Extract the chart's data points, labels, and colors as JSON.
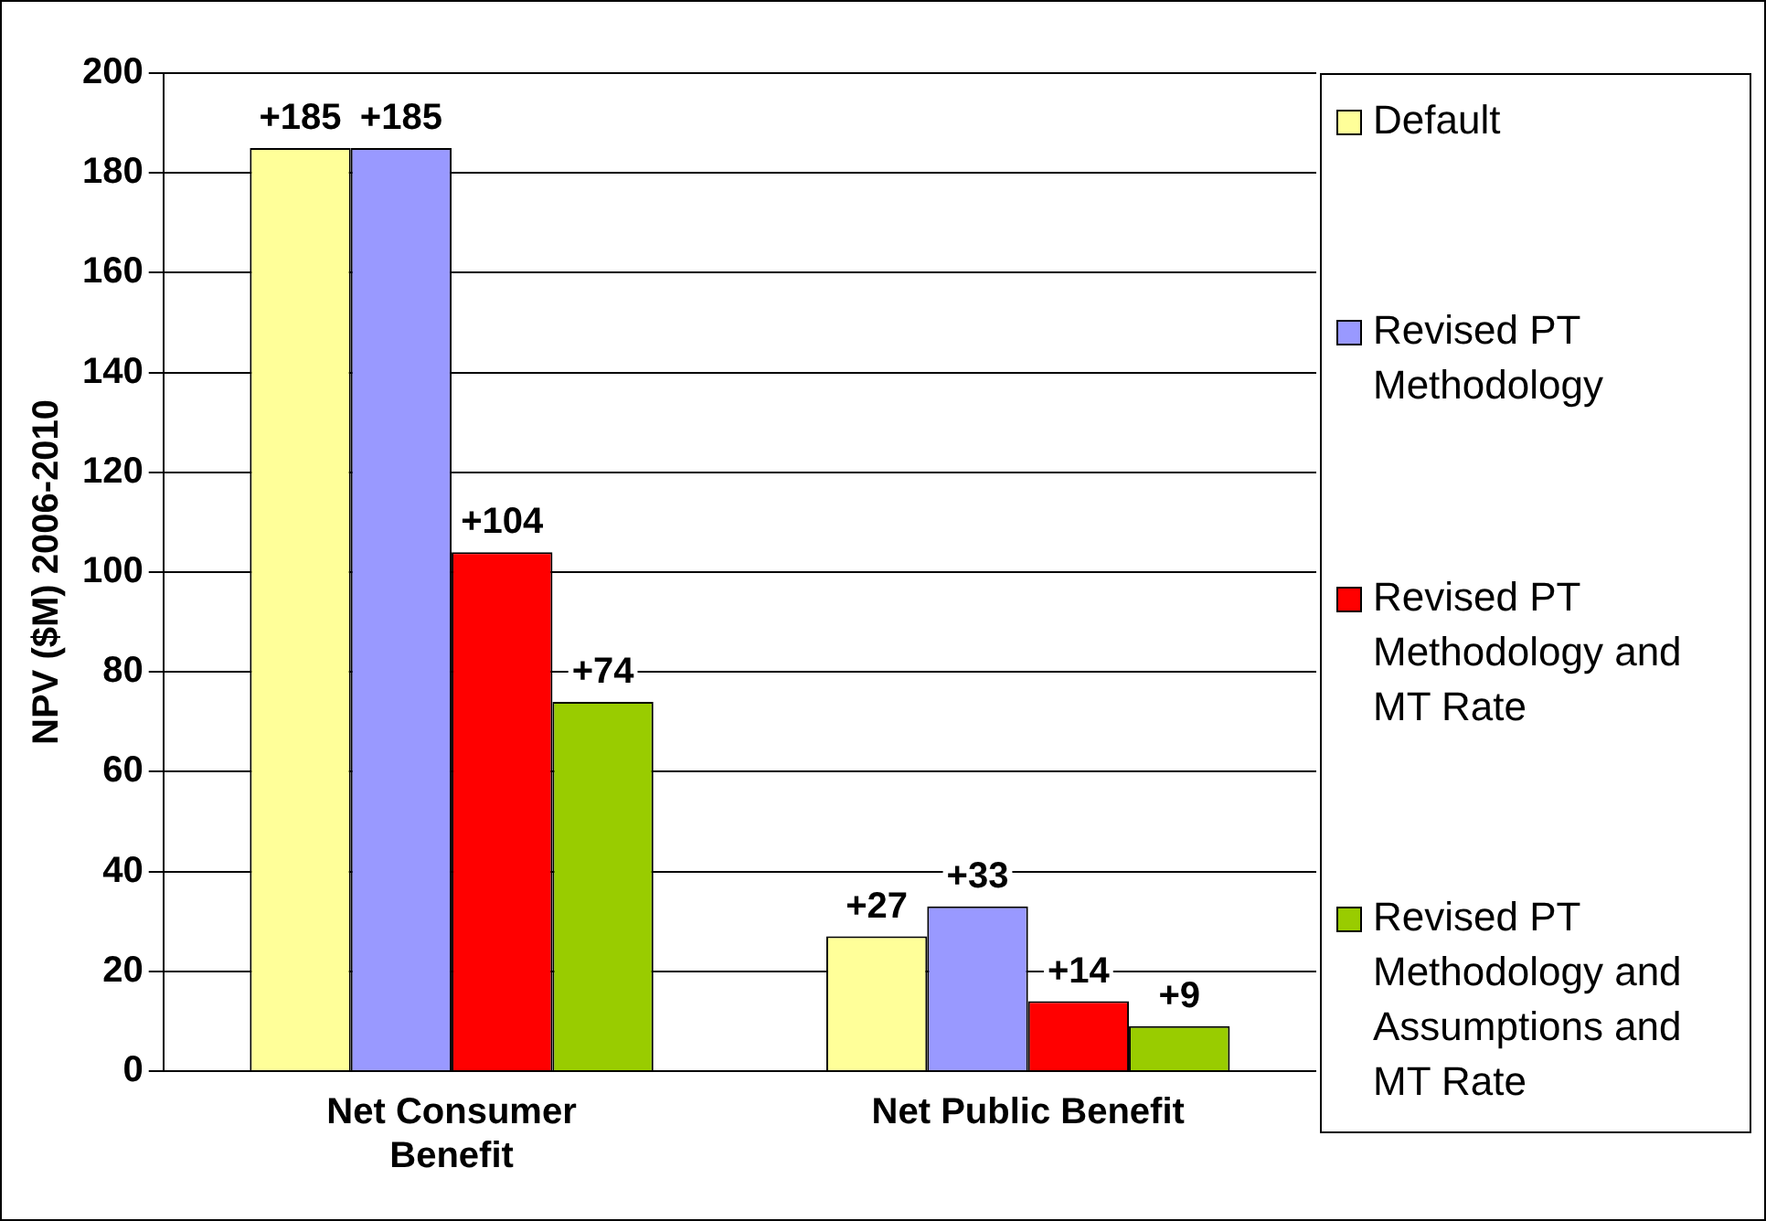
{
  "chart_data": {
    "type": "bar",
    "ylabel": "NPV ($M) 2006-2010",
    "categories": [
      "Net Consumer Benefit",
      "Net Public Benefit"
    ],
    "series": [
      {
        "name": "Default",
        "color": "#ffff99",
        "values": [
          185,
          27
        ],
        "value_labels": [
          "+185",
          "+27"
        ]
      },
      {
        "name": "Revised PT Methodology",
        "color": "#9999ff",
        "values": [
          185,
          33
        ],
        "value_labels": [
          "+185",
          "+33"
        ]
      },
      {
        "name": "Revised PT Methodology and MT Rate",
        "color": "#ff0000",
        "values": [
          104,
          14
        ],
        "value_labels": [
          "+104",
          "+14"
        ]
      },
      {
        "name": "Revised PT Methodology and Assumptions and MT Rate",
        "color": "#99cc00",
        "values": [
          74,
          9
        ],
        "value_labels": [
          "+74",
          "+9"
        ]
      }
    ],
    "ylim": [
      0,
      200
    ],
    "yticks": [
      0,
      20,
      40,
      60,
      80,
      100,
      120,
      140,
      160,
      180,
      200
    ],
    "grid": "y",
    "legend": "right"
  }
}
